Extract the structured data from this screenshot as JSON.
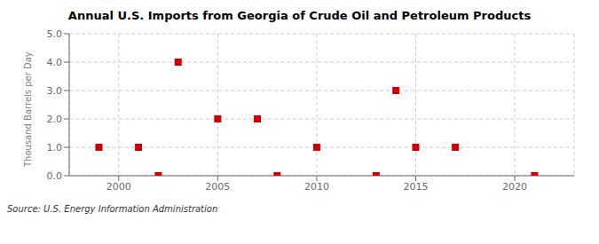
{
  "chart_data": {
    "type": "scatter",
    "title": "Annual U.S. Imports from Georgia of Crude Oil and Petroleum Products",
    "y_label": "Thousand Barrels per Day",
    "annotations": [
      "Source: U.S. Energy Information Administration"
    ],
    "x": [
      1999,
      2001,
      2002,
      2003,
      2005,
      2007,
      2008,
      2010,
      2013,
      2014,
      2015,
      2017,
      2021
    ],
    "values": [
      1.0,
      1.0,
      0.0,
      4.0,
      2.0,
      2.0,
      0.0,
      1.0,
      0.0,
      3.0,
      1.0,
      1.0,
      0.0
    ],
    "color": "#cc0000",
    "marker": "square",
    "xlim": [
      1997.5,
      2023
    ],
    "xticks": [
      2000,
      2005,
      2010,
      2015,
      2020
    ],
    "ylim": [
      0.0,
      5.0
    ],
    "yticks": [
      {
        "value": 0,
        "label": "0.0"
      },
      {
        "value": 1,
        "label": "1.0"
      },
      {
        "value": 2,
        "label": "2.0"
      },
      {
        "value": 3,
        "label": "3.0"
      },
      {
        "value": 4,
        "label": "4.0"
      },
      {
        "value": 5,
        "label": "5.0"
      }
    ],
    "grid": true
  }
}
